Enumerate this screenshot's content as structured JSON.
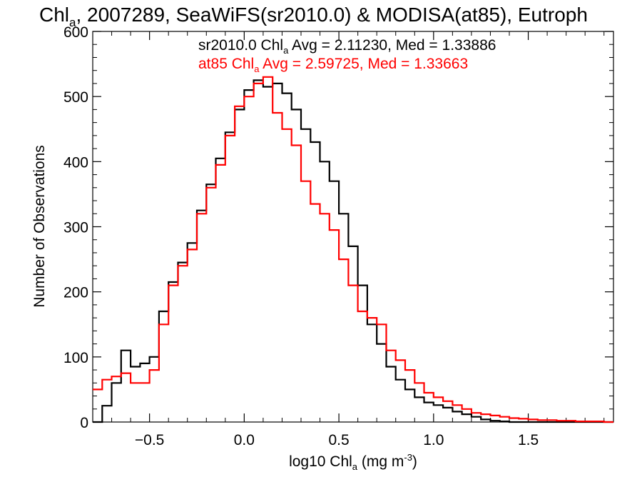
{
  "chart_data": {
    "type": "line",
    "title": "Chl",
    "title_sub": "a",
    "title_rest": ", 2007289, SeaWiFS(sr2010.0) & MODISA(at85), Eutroph",
    "xlabel_pre": "log10 Chl",
    "xlabel_sub": "a",
    "xlabel_post": " (mg m",
    "xlabel_sup": "-3",
    "xlabel_end": ")",
    "ylabel": "Number of Observations",
    "xlim": [
      -0.8,
      1.95
    ],
    "ylim": [
      0,
      600
    ],
    "x_ticks": [
      {
        "v": -0.5,
        "label": "−0.5"
      },
      {
        "v": 0.0,
        "label": "0.0"
      },
      {
        "v": 0.5,
        "label": "0.5"
      },
      {
        "v": 1.0,
        "label": "1.0"
      },
      {
        "v": 1.5,
        "label": "1.5"
      }
    ],
    "y_ticks": [
      {
        "v": 0,
        "label": "0"
      },
      {
        "v": 100,
        "label": "100"
      },
      {
        "v": 200,
        "label": "200"
      },
      {
        "v": 300,
        "label": "300"
      },
      {
        "v": 400,
        "label": "400"
      },
      {
        "v": 500,
        "label": "500"
      },
      {
        "v": 600,
        "label": "600"
      }
    ],
    "x": [
      -0.8,
      -0.75,
      -0.7,
      -0.65,
      -0.6,
      -0.55,
      -0.5,
      -0.45,
      -0.4,
      -0.35,
      -0.3,
      -0.25,
      -0.2,
      -0.15,
      -0.1,
      -0.05,
      0.0,
      0.05,
      0.1,
      0.15,
      0.2,
      0.25,
      0.3,
      0.35,
      0.4,
      0.45,
      0.5,
      0.55,
      0.6,
      0.65,
      0.7,
      0.75,
      0.8,
      0.85,
      0.9,
      0.95,
      1.0,
      1.05,
      1.1,
      1.15,
      1.2,
      1.25,
      1.3,
      1.35,
      1.4,
      1.45,
      1.5,
      1.55,
      1.6,
      1.65,
      1.7,
      1.75,
      1.8,
      1.85,
      1.9,
      1.95
    ],
    "series": [
      {
        "name": "sr2010.0",
        "color": "#000000",
        "legend_pre": "sr2010.0 Chl",
        "legend_sub": "a",
        "legend_post": " Avg = 2.11230, Med = 1.33886",
        "values": [
          0,
          25,
          60,
          110,
          85,
          90,
          100,
          170,
          215,
          245,
          275,
          325,
          365,
          405,
          445,
          480,
          510,
          525,
          515,
          520,
          505,
          480,
          450,
          430,
          400,
          370,
          320,
          270,
          210,
          150,
          120,
          85,
          65,
          50,
          38,
          30,
          26,
          22,
          16,
          12,
          8,
          4,
          2,
          1,
          0,
          0,
          0,
          0,
          0,
          0,
          0,
          0,
          0,
          0,
          0,
          0
        ]
      },
      {
        "name": "at85",
        "color": "#ff0000",
        "legend_pre": "at85 Chl",
        "legend_sub": "a",
        "legend_post": " Avg = 2.59725, Med = 1.33663",
        "values": [
          50,
          65,
          70,
          75,
          60,
          60,
          80,
          150,
          210,
          240,
          265,
          320,
          360,
          395,
          440,
          485,
          500,
          520,
          530,
          475,
          450,
          425,
          370,
          335,
          320,
          295,
          250,
          210,
          170,
          160,
          150,
          110,
          95,
          80,
          60,
          45,
          38,
          32,
          26,
          20,
          14,
          12,
          10,
          8,
          6,
          5,
          4,
          3,
          3,
          2,
          2,
          1,
          1,
          1,
          0,
          0
        ]
      }
    ],
    "grid": false,
    "legend_placement": "top-center"
  }
}
